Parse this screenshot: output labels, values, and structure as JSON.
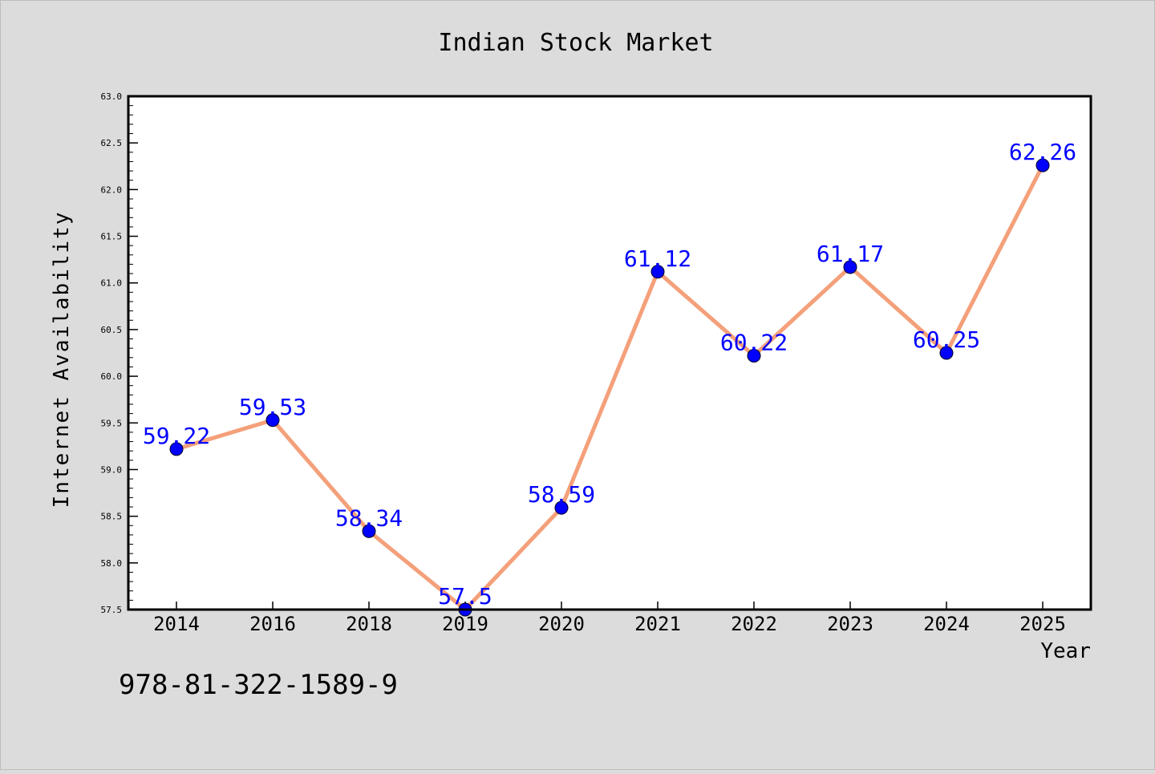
{
  "chart_data": {
    "type": "line",
    "title": "Indian Stock Market",
    "xlabel": "Year",
    "ylabel": "Internet Availability",
    "categories": [
      "2014",
      "2016",
      "2018",
      "2019",
      "2020",
      "2021",
      "2022",
      "2023",
      "2024",
      "2025"
    ],
    "series": [
      {
        "values": [
          59.22,
          59.53,
          58.34,
          57.5,
          58.59,
          61.12,
          60.22,
          61.17,
          60.25,
          62.26
        ],
        "data_labels": [
          "59.22",
          "59.53",
          "58.34",
          "57.5",
          "58.59",
          "61.12",
          "60.22",
          "61.17",
          "60.25",
          "62.26"
        ]
      }
    ],
    "ylim": [
      57.5,
      63.0
    ],
    "yticks": [
      "57.5",
      "58.0",
      "58.5",
      "59.0",
      "59.5",
      "60.0",
      "60.5",
      "61.0",
      "61.5",
      "62.0",
      "62.5",
      "63.0"
    ],
    "grid": false,
    "legend": "none",
    "colors": {
      "background": "#dcdcdc",
      "plot_background": "#ffffff",
      "line": "#f4a07a",
      "marker": "#0000ff",
      "data_label": "#0000ff",
      "text": "#000000"
    }
  },
  "footer": {
    "isbn": "978-81-322-1589-9"
  }
}
